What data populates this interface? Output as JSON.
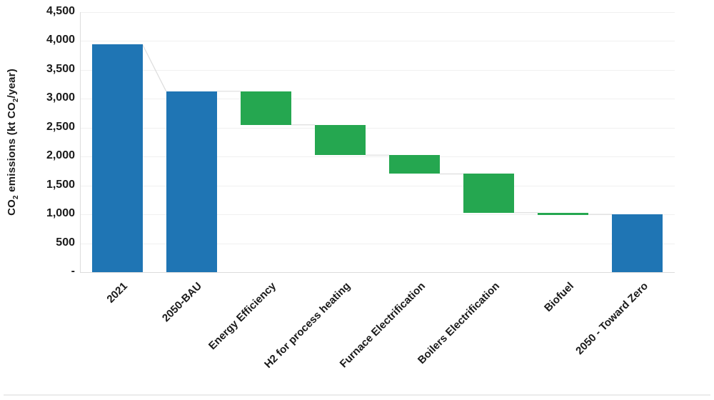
{
  "chart_data": {
    "type": "bar",
    "subtype": "waterfall",
    "title": "",
    "ylabel": "CO2 emissions (kt CO2/year)",
    "ylabel_parts": {
      "p1": "CO",
      "s1": "2",
      "p2": " emissions (kt CO",
      "s2": "2",
      "p3": "/year)"
    },
    "y_axis": {
      "min": 0,
      "max": 4500,
      "step": 500,
      "tick_labels": [
        "-",
        "500",
        "1,000",
        "1,500",
        "2,000",
        "2,500",
        "3,000",
        "3,500",
        "4,000",
        "4,500"
      ]
    },
    "categories": [
      "2021",
      "2050-BAU",
      "Energy Efficiency",
      "H2 for process heating",
      "Furnace Electrification",
      "Boilers Electrification",
      "Biofuel",
      "2050 - Toward Zero"
    ],
    "bars": [
      {
        "label": "2021",
        "from": 0,
        "to": 3940,
        "kind": "absolute"
      },
      {
        "label": "2050-BAU",
        "from": 0,
        "to": 3130,
        "kind": "absolute"
      },
      {
        "label": "Energy Efficiency",
        "from": 2550,
        "to": 3130,
        "kind": "decrease"
      },
      {
        "label": "H2 for process heating",
        "from": 2025,
        "to": 2550,
        "kind": "decrease"
      },
      {
        "label": "Furnace Electrification",
        "from": 1700,
        "to": 2025,
        "kind": "decrease"
      },
      {
        "label": "Boilers Electrification",
        "from": 1030,
        "to": 1700,
        "kind": "decrease"
      },
      {
        "label": "Biofuel",
        "from": 1000,
        "to": 1030,
        "kind": "decrease"
      },
      {
        "label": "2050 - Toward Zero",
        "from": 0,
        "to": 1000,
        "kind": "absolute"
      }
    ],
    "colors": {
      "absolute": "#1f75b4",
      "decrease": "#25a750",
      "gridline": "#f0f0f0",
      "axisline": "#dcdcdc",
      "connector": "#dddddd",
      "text": "#1a1a1a"
    },
    "layout_hints": {
      "grid": "horizontal-on",
      "legend": "none",
      "x_label_rotation": 45
    }
  }
}
